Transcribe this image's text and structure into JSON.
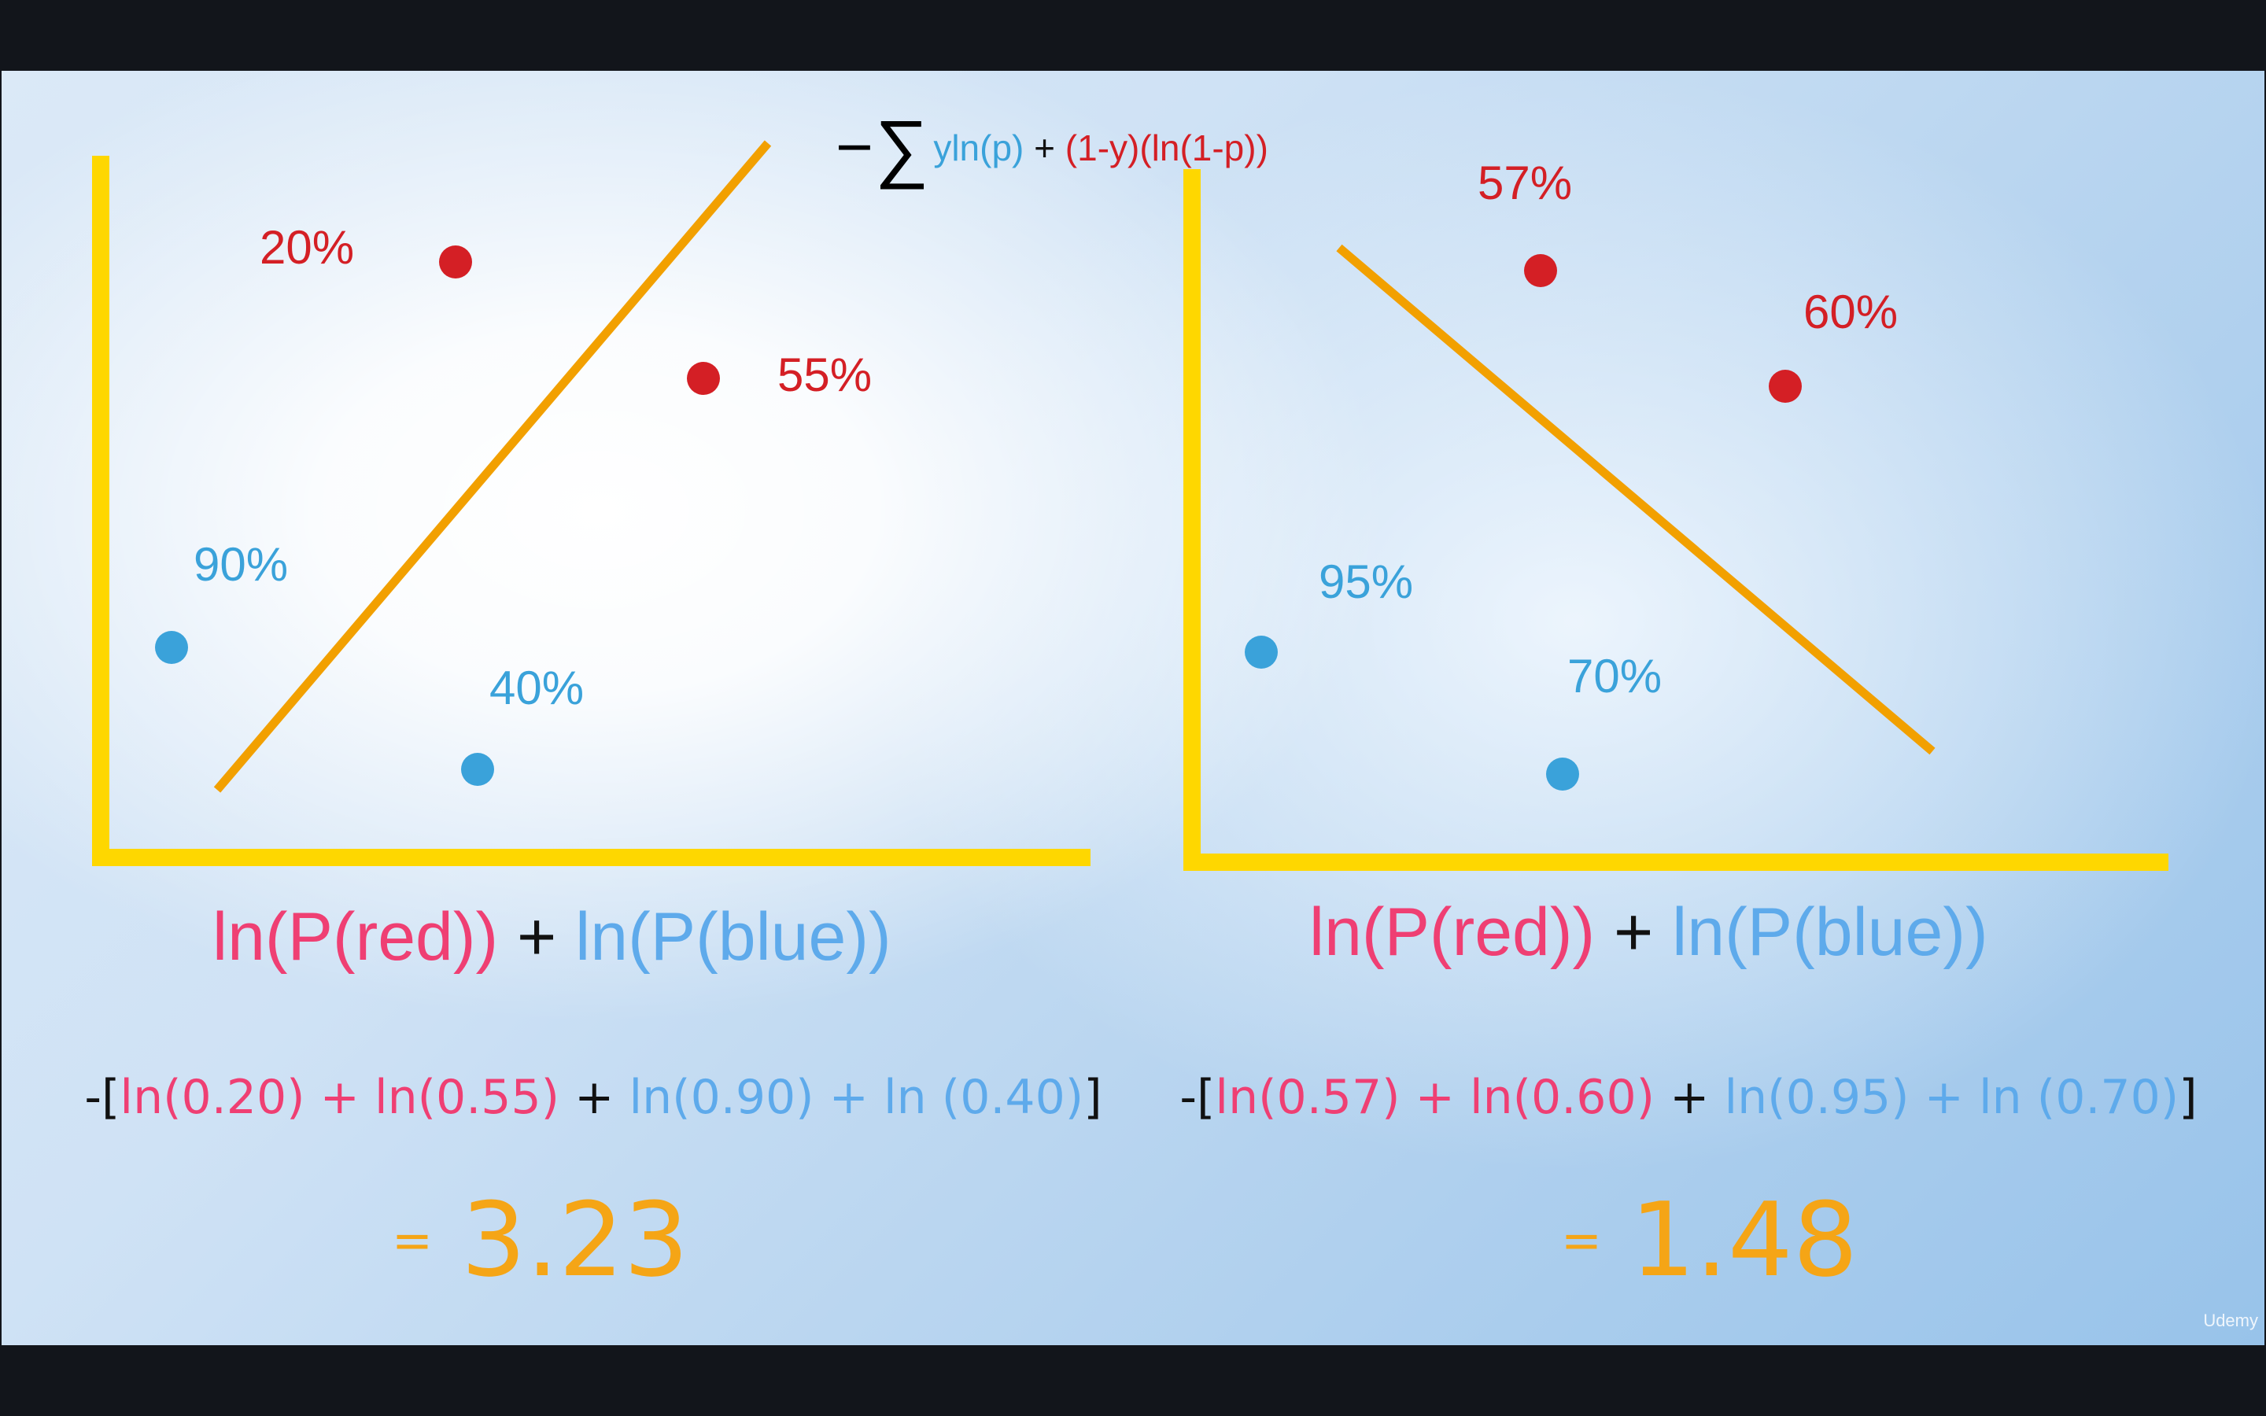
{
  "formula": {
    "minus": "−",
    "sigma": "∑",
    "term_blue": "yln(p)",
    "plus": " + ",
    "term_red": "(1-y)(ln(1-p))"
  },
  "colors": {
    "axis": "#fed700",
    "boundary": "#f2a000",
    "red_point": "#d41f25",
    "blue_point": "#3aa2da",
    "pink_text": "#ef3f73",
    "light_blue_text": "#5eaaeb",
    "result": "#f5a516"
  },
  "left_panel": {
    "labels": {
      "red1": "20%",
      "red2": "55%",
      "blue1": "90%",
      "blue2": "40%"
    },
    "ln_sum": {
      "red": "ln(P(red))",
      "plus": " + ",
      "blue": "ln(P(blue))"
    },
    "calc": {
      "open": "-[",
      "red": "ln(0.20) + ln(0.55)",
      "plus": " + ",
      "blue": "ln(0.90) + ln (0.40)",
      "close": "]"
    },
    "result": {
      "eq": "=",
      "value": "3.23"
    }
  },
  "right_panel": {
    "labels": {
      "red1": "57%",
      "red2": "60%",
      "blue1": "95%",
      "blue2": "70%"
    },
    "ln_sum": {
      "red": "ln(P(red))",
      "plus": " + ",
      "blue": "ln(P(blue))"
    },
    "calc": {
      "open": "-[",
      "red": "ln(0.57) + ln(0.60)",
      "plus": " + ",
      "blue": "ln(0.95) + ln (0.70)",
      "close": "]"
    },
    "result": {
      "eq": "=",
      "value": "1.48"
    }
  },
  "brand": "Udemy"
}
